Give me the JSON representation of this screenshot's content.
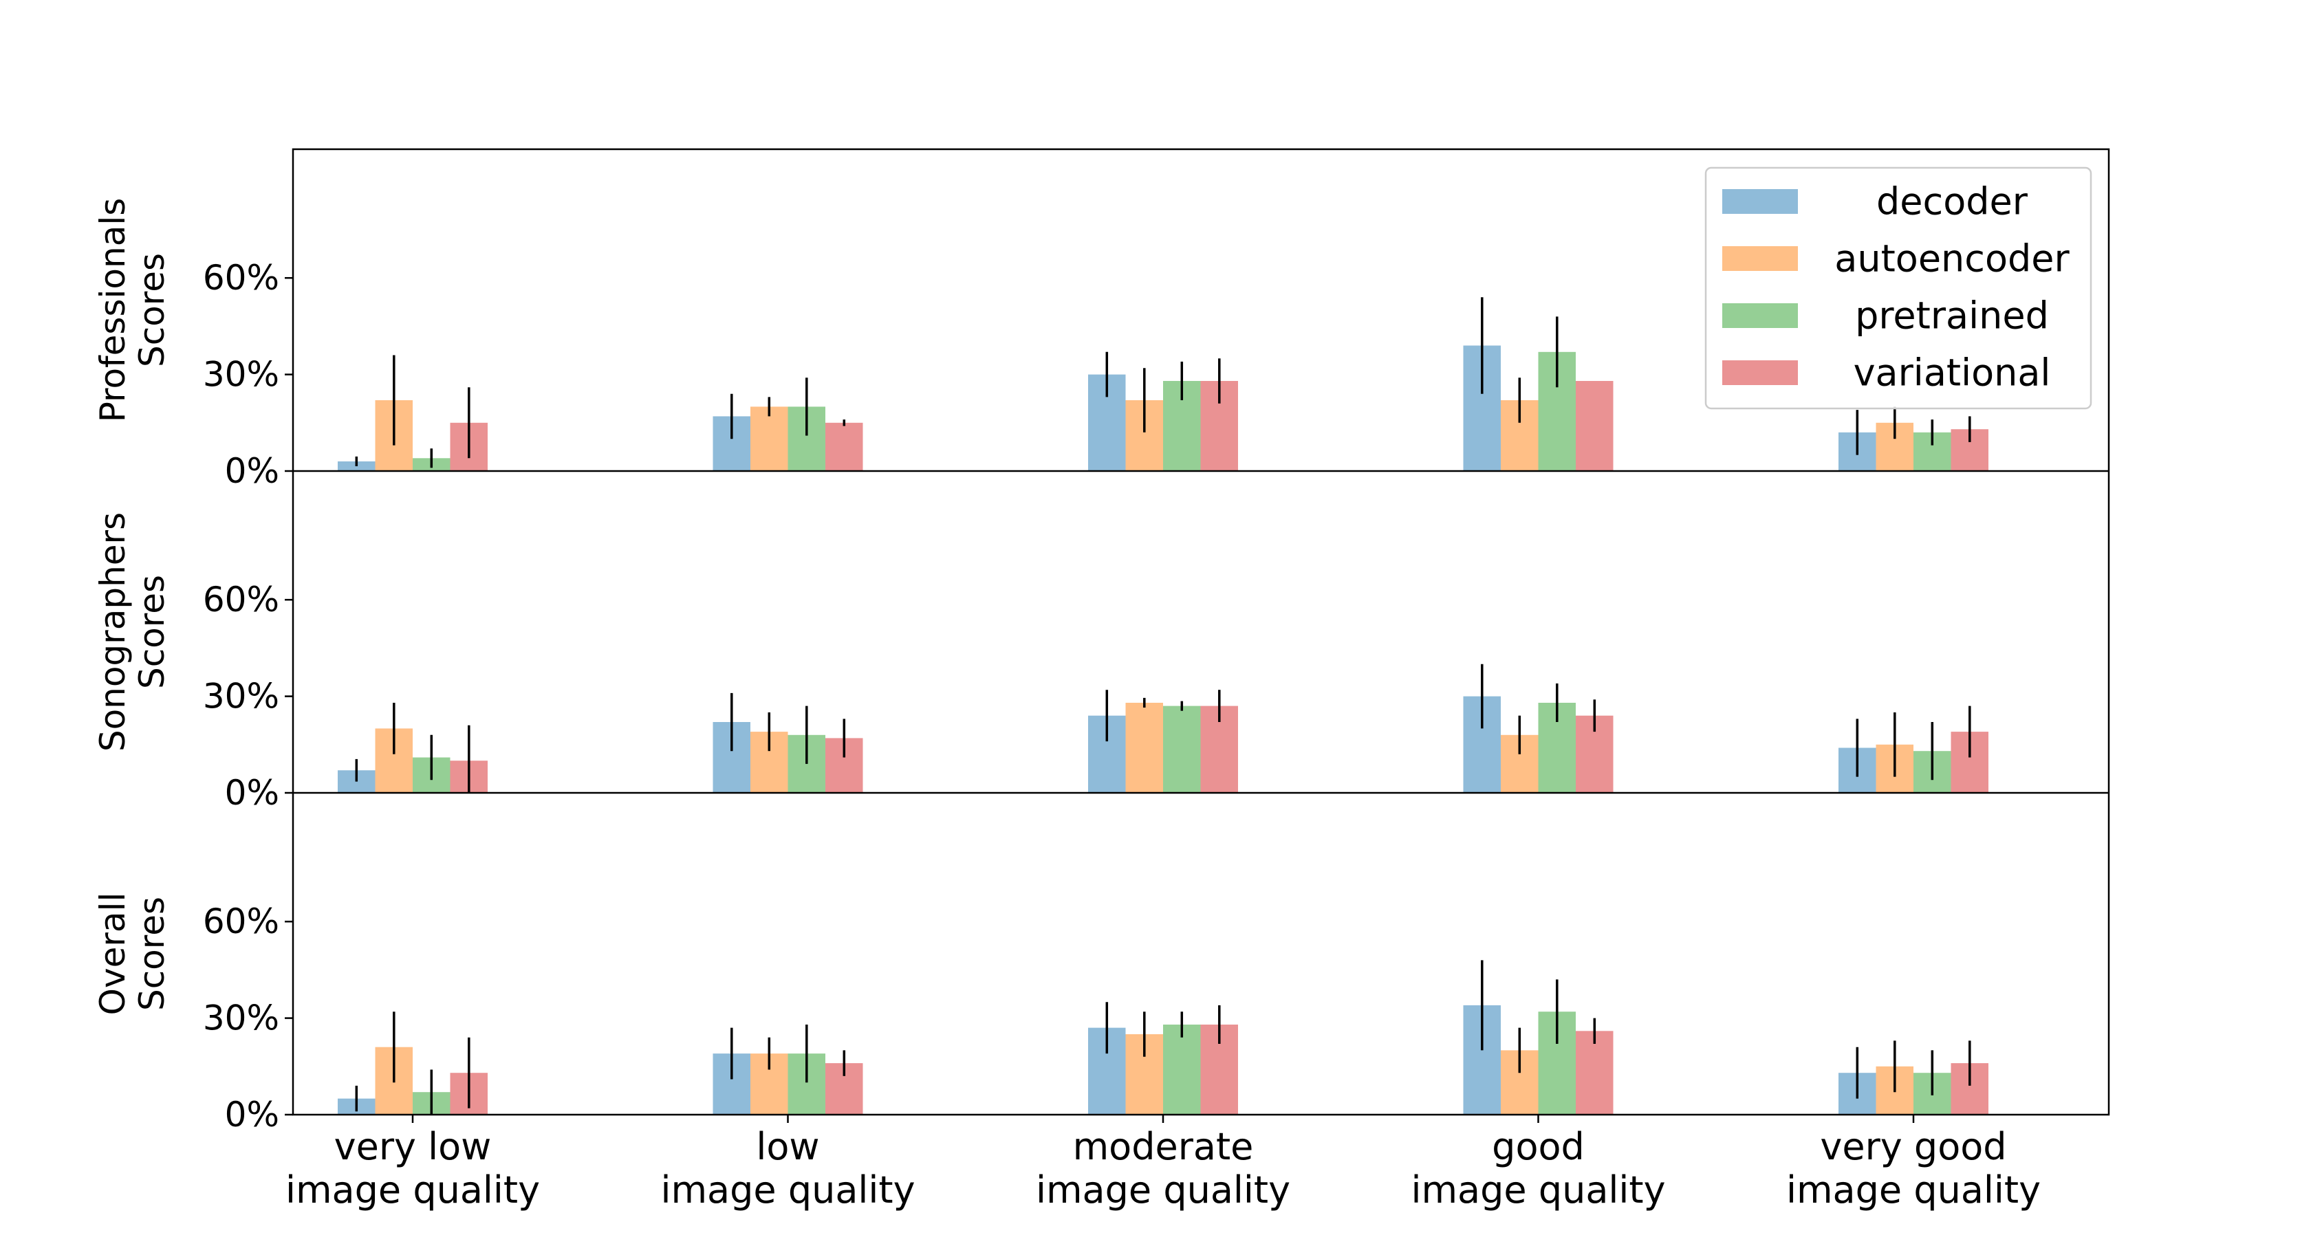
{
  "chart_data": {
    "type": "bar",
    "categories": [
      [
        "very low",
        "image quality"
      ],
      [
        "low",
        "image quality"
      ],
      [
        "moderate",
        "image quality"
      ],
      [
        "good",
        "image quality"
      ],
      [
        "very good",
        "image quality"
      ]
    ],
    "y_ticks": [
      "0%",
      "30%",
      "60%"
    ],
    "ylim": [
      0,
      100
    ],
    "legend": {
      "placement": "top-right",
      "panel": 0
    },
    "colors": {
      "decoder": "#8fbbd9",
      "autoencoder": "#ffbf86",
      "pretrained": "#95cf95",
      "variational": "#ea9293",
      "error_bar": "#000000"
    },
    "panels": [
      {
        "ylabel": [
          "Professionals",
          "Scores"
        ],
        "series": [
          {
            "name": "decoder",
            "values": [
              3,
              17,
              30,
              39,
              12
            ],
            "errors": [
              1.5,
              7,
              7,
              15,
              7
            ]
          },
          {
            "name": "autoencoder",
            "values": [
              22,
              20,
              22,
              22,
              15
            ],
            "errors": [
              14,
              3,
              10,
              7,
              5
            ]
          },
          {
            "name": "pretrained",
            "values": [
              4,
              20,
              28,
              37,
              12
            ],
            "errors": [
              3,
              9,
              6,
              11,
              4
            ]
          },
          {
            "name": "variational",
            "values": [
              15,
              15,
              28,
              28,
              13
            ],
            "errors": [
              11,
              1,
              7,
              0,
              4
            ]
          }
        ]
      },
      {
        "ylabel": [
          "Sonographers",
          "Scores"
        ],
        "series": [
          {
            "name": "decoder",
            "values": [
              7,
              22,
              24,
              30,
              14
            ],
            "errors": [
              3.5,
              9,
              8,
              10,
              9
            ]
          },
          {
            "name": "autoencoder",
            "values": [
              20,
              19,
              28,
              18,
              15
            ],
            "errors": [
              8,
              6,
              1.5,
              6,
              10
            ]
          },
          {
            "name": "pretrained",
            "values": [
              11,
              18,
              27,
              28,
              13
            ],
            "errors": [
              7,
              9,
              1.5,
              6,
              9
            ]
          },
          {
            "name": "variational",
            "values": [
              10,
              17,
              27,
              24,
              19
            ],
            "errors": [
              11,
              6,
              5,
              5,
              8
            ]
          }
        ]
      },
      {
        "ylabel": [
          "Overall",
          "Scores"
        ],
        "series": [
          {
            "name": "decoder",
            "values": [
              5,
              19,
              27,
              34,
              13
            ],
            "errors": [
              4,
              8,
              8,
              14,
              8
            ]
          },
          {
            "name": "autoencoder",
            "values": [
              21,
              19,
              25,
              20,
              15
            ],
            "errors": [
              11,
              5,
              7,
              7,
              8
            ]
          },
          {
            "name": "pretrained",
            "values": [
              7,
              19,
              28,
              32,
              13
            ],
            "errors": [
              7,
              9,
              4,
              10,
              7
            ]
          },
          {
            "name": "variational",
            "values": [
              13,
              16,
              28,
              26,
              16
            ],
            "errors": [
              11,
              4,
              6,
              4,
              7
            ]
          }
        ]
      }
    ]
  }
}
